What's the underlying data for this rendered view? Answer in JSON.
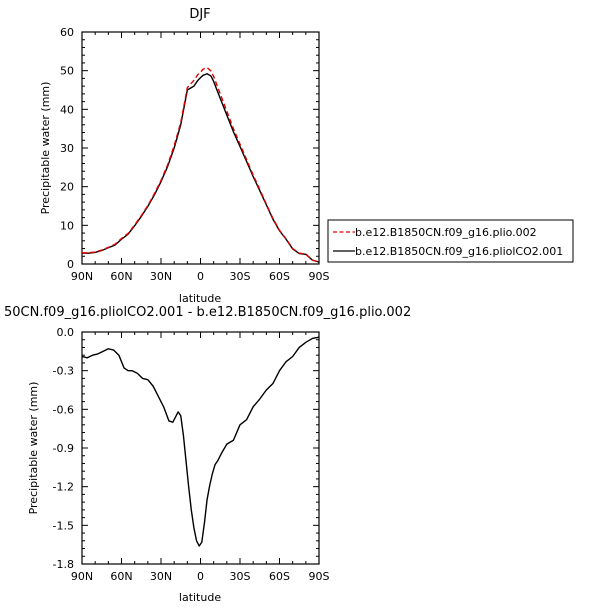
{
  "colors": {
    "series_red": "#e00000",
    "series_black": "#000000",
    "axis": "#000000"
  },
  "chart_data": [
    {
      "type": "line",
      "title": "DJF",
      "xlabel": "latitude",
      "ylabel": "Precipitable water (mm)",
      "xlim": [
        90,
        -90
      ],
      "ylim": [
        0,
        60
      ],
      "xticks": [
        90,
        60,
        30,
        0,
        -30,
        -60,
        -90
      ],
      "xtick_labels": [
        "90N",
        "60N",
        "30N",
        "0",
        "30S",
        "60S",
        "90S"
      ],
      "yticks": [
        0,
        10,
        20,
        30,
        40,
        50,
        60
      ],
      "ytick_labels": [
        "0",
        "10",
        "20",
        "30",
        "40",
        "50",
        "60"
      ],
      "legend_position": "right",
      "series": [
        {
          "name": "b.e12.B1850CN.f09_g16.plio.002",
          "color": "#e00000",
          "style": "dashed",
          "x": [
            90,
            85,
            80,
            75,
            70,
            65,
            60,
            55,
            50,
            45,
            40,
            35,
            30,
            25,
            20,
            15,
            10,
            5,
            2,
            0,
            -2,
            -5,
            -8,
            -10,
            -15,
            -20,
            -25,
            -30,
            -35,
            -40,
            -45,
            -50,
            -55,
            -60,
            -65,
            -70,
            -75,
            -80,
            -85,
            -90
          ],
          "y": [
            2.9,
            2.9,
            3.1,
            3.6,
            4.3,
            5.1,
            6.6,
            7.9,
            10.1,
            12.5,
            15.1,
            18.2,
            21.6,
            25.6,
            30.6,
            36.6,
            45.6,
            47.5,
            49.0,
            49.6,
            50.4,
            50.8,
            49.9,
            48.5,
            44.0,
            39.5,
            35.0,
            31.0,
            27.0,
            23.0,
            19.3,
            15.5,
            11.8,
            8.7,
            6.5,
            4.0,
            2.8,
            2.6,
            1.0,
            0.5
          ]
        },
        {
          "name": "b.e12.B1850CN.f09_g16.pliolCO2.001",
          "color": "#000000",
          "style": "solid",
          "x": [
            90,
            85,
            80,
            75,
            70,
            65,
            60,
            55,
            50,
            45,
            40,
            35,
            30,
            25,
            20,
            15,
            10,
            5,
            2,
            0,
            -2,
            -5,
            -8,
            -10,
            -15,
            -20,
            -25,
            -30,
            -35,
            -40,
            -45,
            -50,
            -55,
            -60,
            -65,
            -70,
            -75,
            -80,
            -85,
            -90
          ],
          "y": [
            2.8,
            2.8,
            3.0,
            3.5,
            4.2,
            4.9,
            6.4,
            7.7,
            9.9,
            12.3,
            14.9,
            17.9,
            21.3,
            25.2,
            30.0,
            36.0,
            45.0,
            46.0,
            47.5,
            48.2,
            48.8,
            49.2,
            48.6,
            47.2,
            42.8,
            38.5,
            34.2,
            30.4,
            26.5,
            22.6,
            19.0,
            15.3,
            11.6,
            8.6,
            6.4,
            3.9,
            2.7,
            2.5,
            1.0,
            0.5
          ]
        }
      ]
    },
    {
      "type": "line",
      "title": "50CN.f09_g16.pliolCO2.001 - b.e12.B1850CN.f09_g16.plio.002",
      "xlabel": "latitude",
      "ylabel": "Precipitable water (mm)",
      "xlim": [
        90,
        -90
      ],
      "ylim": [
        -1.8,
        0.0
      ],
      "xticks": [
        90,
        60,
        30,
        0,
        -30,
        -60,
        -90
      ],
      "xtick_labels": [
        "90N",
        "60N",
        "30N",
        "0",
        "30S",
        "60S",
        "90S"
      ],
      "yticks": [
        0.0,
        -0.3,
        -0.6,
        -0.9,
        -1.2,
        -1.5,
        -1.8
      ],
      "ytick_labels": [
        "0.0",
        "-0.3",
        "-0.6",
        "-0.9",
        "-1.2",
        "-1.5",
        "-1.8"
      ],
      "series": [
        {
          "color": "#000000",
          "style": "solid",
          "x": [
            90,
            86,
            82,
            78,
            74,
            70,
            66,
            62,
            58,
            55,
            52,
            48,
            44,
            40,
            36,
            32,
            28,
            24,
            21,
            19,
            17,
            15,
            13,
            11,
            9,
            7,
            5,
            3,
            1,
            -1,
            -3,
            -5,
            -7,
            -9,
            -11,
            -13,
            -16,
            -20,
            -25,
            -30,
            -35,
            -40,
            -45,
            -50,
            -55,
            -60,
            -65,
            -70,
            -75,
            -80,
            -85,
            -90
          ],
          "y": [
            -0.19,
            -0.2,
            -0.18,
            -0.17,
            -0.15,
            -0.13,
            -0.14,
            -0.18,
            -0.28,
            -0.3,
            -0.3,
            -0.32,
            -0.36,
            -0.37,
            -0.42,
            -0.5,
            -0.58,
            -0.69,
            -0.7,
            -0.66,
            -0.62,
            -0.65,
            -0.8,
            -1.0,
            -1.2,
            -1.38,
            -1.52,
            -1.62,
            -1.66,
            -1.63,
            -1.48,
            -1.3,
            -1.19,
            -1.1,
            -1.03,
            -1.0,
            -0.94,
            -0.87,
            -0.84,
            -0.72,
            -0.68,
            -0.58,
            -0.52,
            -0.45,
            -0.4,
            -0.3,
            -0.23,
            -0.19,
            -0.12,
            -0.08,
            -0.05,
            -0.04
          ]
        }
      ]
    }
  ]
}
